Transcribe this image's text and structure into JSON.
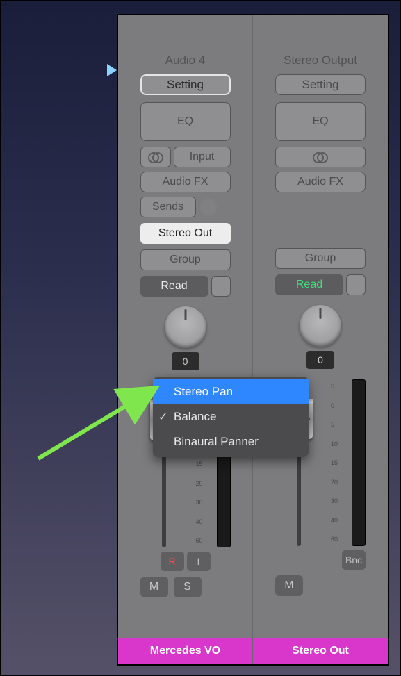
{
  "strips": [
    {
      "title": "Audio 4",
      "setting": "Setting",
      "eq": "EQ",
      "input": "Input",
      "audiofx": "Audio FX",
      "sends": "Sends",
      "output": "Stereo Out",
      "group": "Group",
      "read": "Read",
      "read_color": "#e9e9e9",
      "rec": "R",
      "inp": "I",
      "mute": "M",
      "solo": "S",
      "track_name": "Mercedes VO",
      "pan_display": "0"
    },
    {
      "title": "Stereo Output",
      "setting": "Setting",
      "eq": "EQ",
      "audiofx": "Audio FX",
      "group": "Group",
      "read": "Read",
      "read_color": "#3de07d",
      "bnc": "Bnc",
      "mute": "M",
      "track_name": "Stereo Out",
      "pan_display": "0"
    }
  ],
  "menu": {
    "items": [
      {
        "label": "Stereo Pan",
        "selected": true,
        "checked": false
      },
      {
        "label": "Balance",
        "selected": false,
        "checked": true
      },
      {
        "label": "Binaural Panner",
        "selected": false,
        "checked": false
      }
    ]
  },
  "scale_labels": [
    "5",
    "0",
    "5",
    "10",
    "15",
    "20",
    "30",
    "40",
    "60"
  ],
  "colors": {
    "track_name_bg": "#d936cc",
    "menu_highlight": "#2f87ff",
    "arrow": "#7fe64d"
  }
}
